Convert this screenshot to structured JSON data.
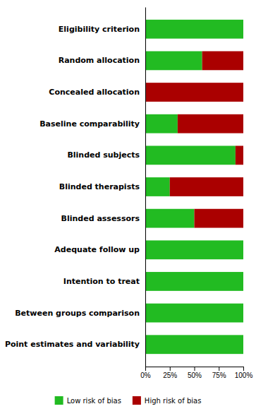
{
  "chart_data": {
    "type": "bar",
    "orientation": "horizontal",
    "stacked": true,
    "categories": [
      "Eligibility criterion",
      "Random allocation",
      "Concealed allocation",
      "Baseline comparability",
      "Blinded subjects",
      "Blinded therapists",
      "Blinded assessors",
      "Adequate follow up",
      "Intention to treat",
      "Between groups comparison",
      "Point estimates and variability"
    ],
    "series": [
      {
        "name": "Low risk of bias",
        "color": "#22bb22",
        "values": [
          100,
          58,
          0,
          33,
          92,
          25,
          50,
          100,
          100,
          100,
          100
        ]
      },
      {
        "name": "High risk of bias",
        "color": "#aa0000",
        "values": [
          0,
          42,
          100,
          67,
          8,
          75,
          50,
          0,
          0,
          0,
          0
        ]
      }
    ],
    "xlim": [
      0,
      100
    ],
    "xticks": [
      {
        "value": 0,
        "label": "0%"
      },
      {
        "value": 25,
        "label": "25%"
      },
      {
        "value": 50,
        "label": "50%"
      },
      {
        "value": 75,
        "label": "75%"
      },
      {
        "value": 100,
        "label": "100%"
      }
    ],
    "legend": "bottom"
  }
}
